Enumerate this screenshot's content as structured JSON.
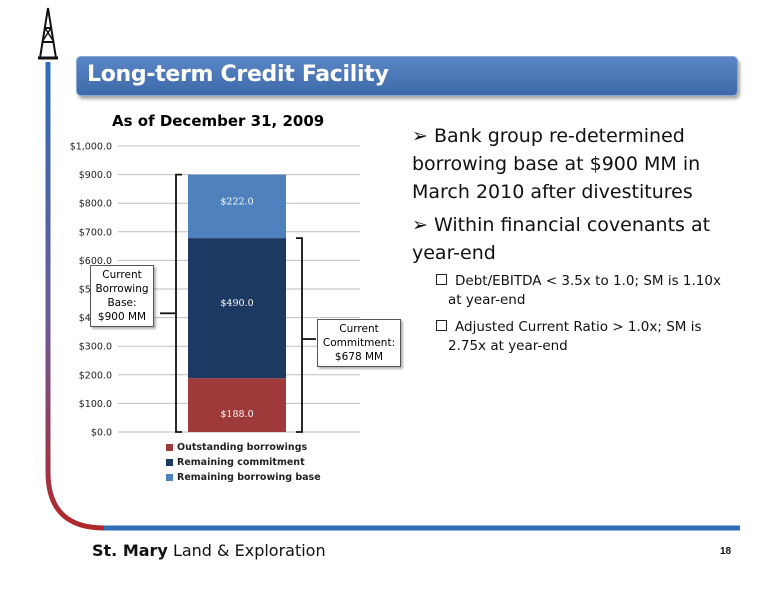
{
  "header": {
    "title": "Long-term Credit Facility"
  },
  "chart_data": {
    "type": "bar",
    "stacked": true,
    "title": "As of December 31, 2009",
    "xlabel": "",
    "ylabel": "",
    "ylim": [
      0,
      1000
    ],
    "y_ticks": [
      "$0.0",
      "$100.0",
      "$200.0",
      "$300.0",
      "$400.0",
      "$500.0",
      "$600.0",
      "$700.0",
      "$800.0",
      "$900.0",
      "$1,000.0"
    ],
    "grid": true,
    "legend_position": "bottom",
    "series": [
      {
        "name": "Outstanding borrowings",
        "values": [
          188
        ],
        "label": "$188.0",
        "color": "#9e3a3a"
      },
      {
        "name": "Remaining commitment",
        "values": [
          490
        ],
        "label": "$490.0",
        "color": "#1c3961"
      },
      {
        "name": "Remaining borrowing base",
        "values": [
          222
        ],
        "label": "$222.0",
        "color": "#4f81bd"
      }
    ]
  },
  "callouts": {
    "borrowing_base": [
      "Current",
      "Borrowing",
      "Base:",
      "$900 MM"
    ],
    "commitment": [
      "Current",
      "Commitment:",
      "$678 MM"
    ]
  },
  "bullets": {
    "main": [
      "➢ Bank group re-determined borrowing base at $900 MM in March 2010 after divestitures",
      "➢ Within financial covenants at year-end"
    ],
    "sub": [
      "Debt/EBITDA < 3.5x to 1.0; SM is 1.10x at year-end",
      "Adjusted Current Ratio > 1.0x; SM is 2.75x at year-end"
    ]
  },
  "footer": {
    "company_bold": "St. Mary",
    "company_rest": " Land & Exploration",
    "page": "18"
  },
  "colors": {
    "accent_blue": "#4f81bd",
    "accent_red": "#a02a2a",
    "bottom_line": "#2e6fb8"
  },
  "icons": {
    "logo": "oil-derrick-icon"
  }
}
